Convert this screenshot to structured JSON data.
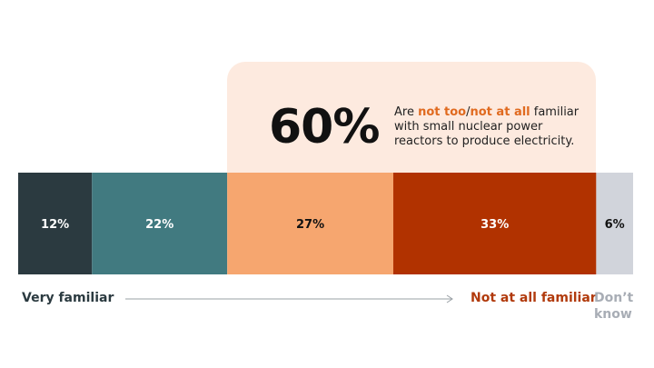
{
  "callout": {
    "big_value": "60%",
    "text_prefix": "Are ",
    "hl1": "not too",
    "sep": "/",
    "hl2": "not at all",
    "text_suffix": " familiar with small nuclear power reactors to produce electricity."
  },
  "legend": {
    "left": "Very familiar",
    "right": "Not at all familiar",
    "dont_know": "Don’t know"
  },
  "chart_data": {
    "type": "bar",
    "orientation": "horizontal-stacked",
    "categories": [
      "Very familiar",
      "",
      "",
      "Not at all familiar",
      "Don’t know"
    ],
    "values": [
      12,
      22,
      27,
      33,
      6
    ],
    "labels": [
      "12%",
      "22%",
      "27%",
      "33%",
      "6%"
    ],
    "colors": [
      "#2b3a40",
      "#417a80",
      "#f6a66f",
      "#b13200",
      "#d1d4db"
    ],
    "label_colors": [
      "#ffffff",
      "#ffffff",
      "#111111",
      "#ffffff",
      "#111111"
    ]
  }
}
